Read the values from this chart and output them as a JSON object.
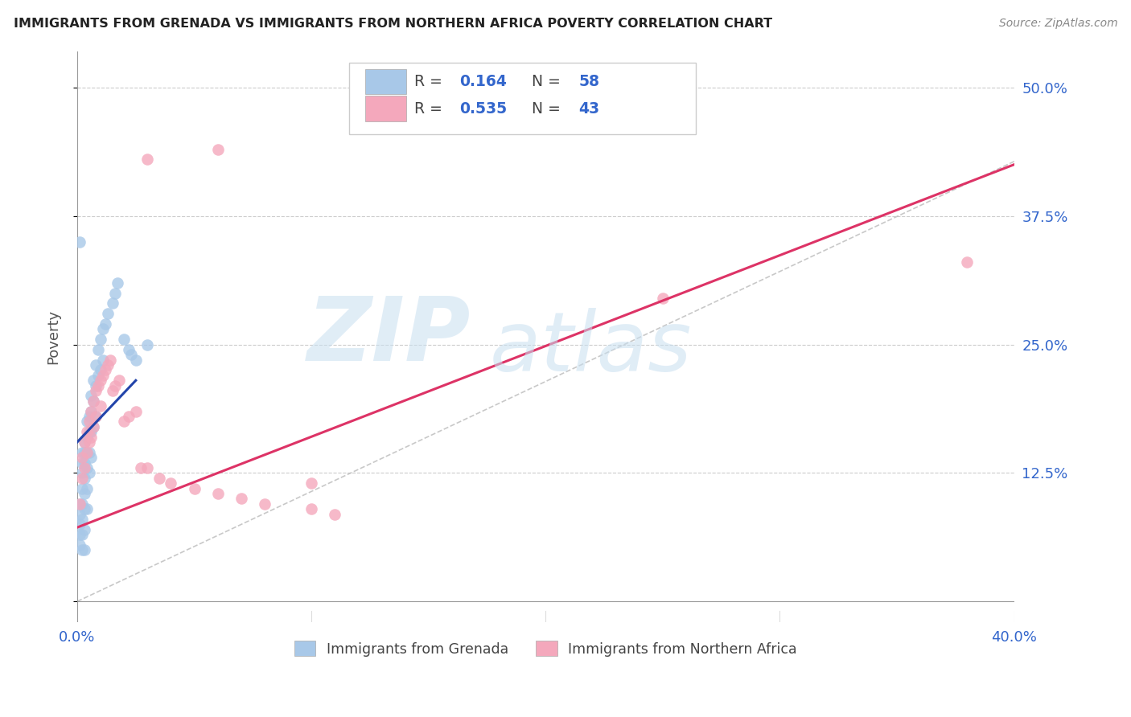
{
  "title": "IMMIGRANTS FROM GRENADA VS IMMIGRANTS FROM NORTHERN AFRICA POVERTY CORRELATION CHART",
  "source": "Source: ZipAtlas.com",
  "ylabel": "Poverty",
  "xmin": 0.0,
  "xmax": 0.4,
  "ymin": -0.02,
  "ymax": 0.535,
  "yticks": [
    0.0,
    0.125,
    0.25,
    0.375,
    0.5
  ],
  "ytick_labels": [
    "",
    "12.5%",
    "25.0%",
    "37.5%",
    "50.0%"
  ],
  "xticks": [
    0.0,
    0.1,
    0.2,
    0.3,
    0.4
  ],
  "xtick_labels": [
    "0.0%",
    "",
    "",
    "",
    "40.0%"
  ],
  "label1": "Immigrants from Grenada",
  "label2": "Immigrants from Northern Africa",
  "color1": "#a8c8e8",
  "color2": "#f4a8bc",
  "line_color1": "#2244aa",
  "line_color2": "#dd3366",
  "watermark_zip": "ZIP",
  "watermark_atlas": "atlas",
  "blue_x": [
    0.001,
    0.001,
    0.001,
    0.001,
    0.001,
    0.002,
    0.002,
    0.002,
    0.002,
    0.002,
    0.002,
    0.002,
    0.002,
    0.003,
    0.003,
    0.003,
    0.003,
    0.003,
    0.003,
    0.003,
    0.003,
    0.004,
    0.004,
    0.004,
    0.004,
    0.004,
    0.004,
    0.005,
    0.005,
    0.005,
    0.005,
    0.006,
    0.006,
    0.006,
    0.006,
    0.007,
    0.007,
    0.007,
    0.008,
    0.008,
    0.008,
    0.009,
    0.009,
    0.01,
    0.01,
    0.011,
    0.011,
    0.012,
    0.013,
    0.015,
    0.016,
    0.017,
    0.02,
    0.022,
    0.023,
    0.025,
    0.03,
    0.001
  ],
  "blue_y": [
    0.095,
    0.085,
    0.075,
    0.065,
    0.055,
    0.145,
    0.135,
    0.125,
    0.11,
    0.095,
    0.08,
    0.065,
    0.05,
    0.155,
    0.145,
    0.135,
    0.12,
    0.105,
    0.09,
    0.07,
    0.05,
    0.175,
    0.16,
    0.145,
    0.13,
    0.11,
    0.09,
    0.18,
    0.165,
    0.145,
    0.125,
    0.2,
    0.185,
    0.165,
    0.14,
    0.215,
    0.195,
    0.17,
    0.23,
    0.21,
    0.18,
    0.245,
    0.22,
    0.255,
    0.225,
    0.265,
    0.235,
    0.27,
    0.28,
    0.29,
    0.3,
    0.31,
    0.255,
    0.245,
    0.24,
    0.235,
    0.25,
    0.35
  ],
  "pink_x": [
    0.001,
    0.002,
    0.002,
    0.003,
    0.003,
    0.004,
    0.004,
    0.005,
    0.005,
    0.006,
    0.006,
    0.007,
    0.007,
    0.008,
    0.008,
    0.009,
    0.01,
    0.01,
    0.011,
    0.012,
    0.013,
    0.014,
    0.015,
    0.016,
    0.018,
    0.02,
    0.022,
    0.025,
    0.027,
    0.03,
    0.035,
    0.04,
    0.05,
    0.06,
    0.07,
    0.08,
    0.1,
    0.11,
    0.25,
    0.38,
    0.03,
    0.06,
    0.1
  ],
  "pink_y": [
    0.095,
    0.14,
    0.12,
    0.155,
    0.13,
    0.165,
    0.145,
    0.175,
    0.155,
    0.185,
    0.16,
    0.195,
    0.17,
    0.205,
    0.18,
    0.21,
    0.215,
    0.19,
    0.22,
    0.225,
    0.23,
    0.235,
    0.205,
    0.21,
    0.215,
    0.175,
    0.18,
    0.185,
    0.13,
    0.13,
    0.12,
    0.115,
    0.11,
    0.105,
    0.1,
    0.095,
    0.09,
    0.085,
    0.295,
    0.33,
    0.43,
    0.44,
    0.115
  ],
  "blue_line_x": [
    0.0,
    0.025
  ],
  "blue_line_y": [
    0.155,
    0.215
  ],
  "pink_line_x": [
    0.0,
    0.4
  ],
  "pink_line_y": [
    0.072,
    0.425
  ]
}
